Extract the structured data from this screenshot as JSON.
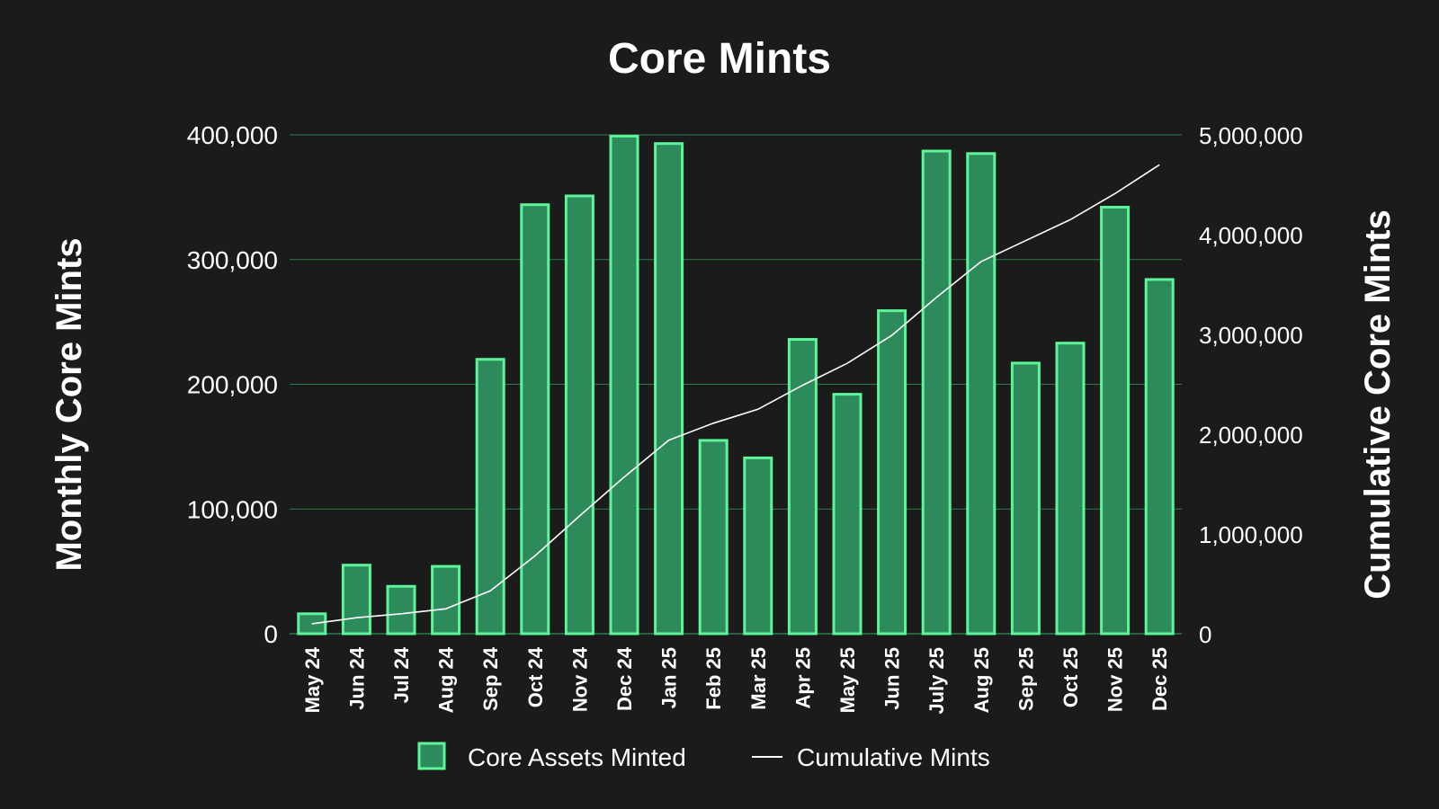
{
  "colors": {
    "background": "#1b1b1b",
    "bar_fill": "#2d8a5a",
    "bar_stroke": "#5cf59a",
    "grid": "#2f7a4f",
    "line": "#ffffff",
    "text": "#ffffff"
  },
  "chart_data": {
    "type": "bar",
    "title": "Core Mints",
    "ylabel": "Monthly Core Mints",
    "y2label": "Cumulative Core Mints",
    "categories": [
      "May 24",
      "Jun 24",
      "Jul 24",
      "Aug 24",
      "Sep 24",
      "Oct 24",
      "Nov 24",
      "Dec 24",
      "Jan 25",
      "Feb 25",
      "Mar 25",
      "Apr 25",
      "May 25",
      "Jun 25",
      "July 25",
      "Aug 25",
      "Sep 25",
      "Oct 25",
      "Nov 25",
      "Dec 25"
    ],
    "ylim": [
      0,
      400000
    ],
    "y2lim": [
      0,
      5000000
    ],
    "yticks": [
      0,
      100000,
      200000,
      300000,
      400000
    ],
    "yticklabels": [
      "0",
      "100,000",
      "200,000",
      "300,000",
      "400,000"
    ],
    "y2ticks": [
      0,
      1000000,
      2000000,
      3000000,
      4000000,
      5000000
    ],
    "y2ticklabels": [
      "0",
      "1,000,000",
      "2,000,000",
      "3,000,000",
      "4,000,000",
      "5,000,000"
    ],
    "grid": true,
    "legend_position": "bottom-center",
    "series": [
      {
        "name": "Core Assets Minted",
        "type": "bar",
        "axis": "left",
        "values": [
          16000,
          55000,
          38000,
          54000,
          220000,
          344000,
          351000,
          399000,
          393000,
          155000,
          141000,
          236000,
          192000,
          259000,
          387000,
          385000,
          217000,
          233000,
          342000,
          284000
        ]
      },
      {
        "name": "Cumulative Mints",
        "type": "line",
        "axis": "right",
        "values": [
          100000,
          160000,
          200000,
          250000,
          430000,
          780000,
          1180000,
          1570000,
          1940000,
          2110000,
          2250000,
          2490000,
          2710000,
          2990000,
          3370000,
          3730000,
          3940000,
          4150000,
          4410000,
          4700000
        ]
      }
    ]
  }
}
